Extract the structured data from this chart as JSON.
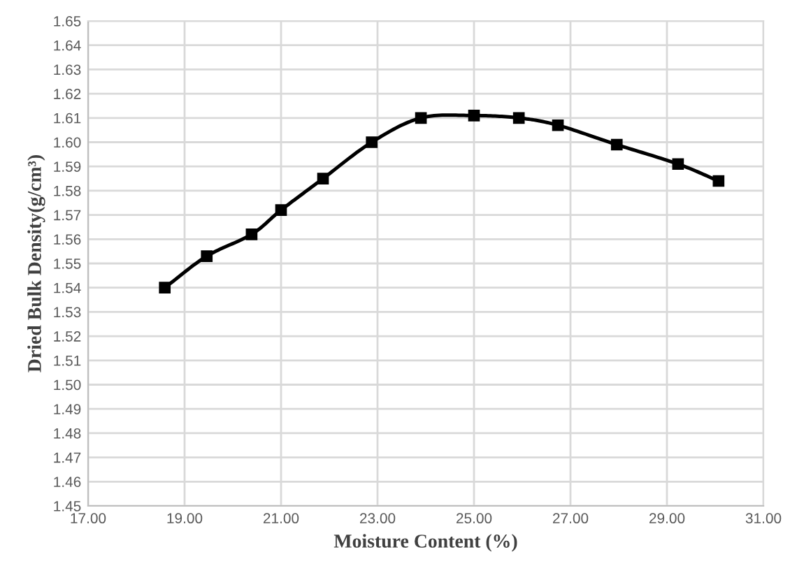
{
  "chart_data": {
    "type": "line",
    "xlabel": "Moisture Content (%)",
    "ylabel": "Dried Bulk Density(g/cm³)",
    "x": [
      18.59,
      19.46,
      20.39,
      21.0,
      21.87,
      22.88,
      23.9,
      25.0,
      25.93,
      26.74,
      27.96,
      29.23,
      30.07
    ],
    "series": [
      {
        "color": "#000000",
        "values": [
          1.54,
          1.553,
          1.562,
          1.572,
          1.585,
          1.6,
          1.61,
          1.611,
          1.61,
          1.607,
          1.599,
          1.591,
          1.584
        ]
      }
    ],
    "xlim": [
      17,
      31
    ],
    "xticks": [
      {
        "value": 17,
        "label": "17.00"
      },
      {
        "value": 19,
        "label": "19.00"
      },
      {
        "value": 21,
        "label": "21.00"
      },
      {
        "value": 23,
        "label": "23.00"
      },
      {
        "value": 25,
        "label": "25.00"
      },
      {
        "value": 27,
        "label": "27.00"
      },
      {
        "value": 29,
        "label": "29.00"
      },
      {
        "value": 31,
        "label": "31.00"
      }
    ],
    "ylim": [
      1.45,
      1.65
    ],
    "yticks": [
      {
        "value": 1.45,
        "label": "1.45"
      },
      {
        "value": 1.46,
        "label": "1.46"
      },
      {
        "value": 1.47,
        "label": "1.47"
      },
      {
        "value": 1.48,
        "label": "1.48"
      },
      {
        "value": 1.49,
        "label": "1.49"
      },
      {
        "value": 1.5,
        "label": "1.50"
      },
      {
        "value": 1.51,
        "label": "1.51"
      },
      {
        "value": 1.52,
        "label": "1.52"
      },
      {
        "value": 1.53,
        "label": "1.53"
      },
      {
        "value": 1.54,
        "label": "1.54"
      },
      {
        "value": 1.55,
        "label": "1.55"
      },
      {
        "value": 1.56,
        "label": "1.56"
      },
      {
        "value": 1.57,
        "label": "1.57"
      },
      {
        "value": 1.58,
        "label": "1.58"
      },
      {
        "value": 1.59,
        "label": "1.59"
      },
      {
        "value": 1.6,
        "label": "1.60"
      },
      {
        "value": 1.61,
        "label": "1.61"
      },
      {
        "value": 1.62,
        "label": "1.62"
      },
      {
        "value": 1.63,
        "label": "1.63"
      },
      {
        "value": 1.64,
        "label": "1.64"
      },
      {
        "value": 1.65,
        "label": "1.65"
      }
    ],
    "grid": true,
    "marker": "square",
    "line_style": "solid"
  }
}
